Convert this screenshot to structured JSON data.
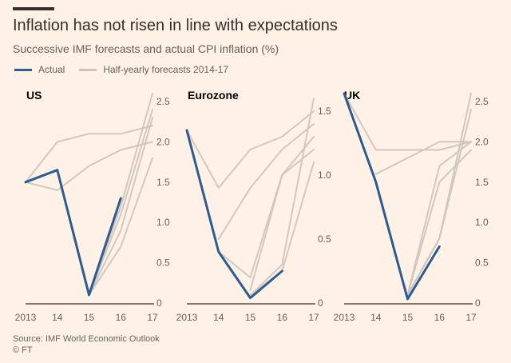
{
  "title": "Inflation has not risen in line with expectations",
  "subtitle": "Successive IMF forecasts and actual CPI inflation (%)",
  "legend": {
    "actual": "Actual",
    "forecasts": "Half-yearly forecasts 2014-17"
  },
  "source": "Source: IMF World Economic Outlook",
  "credit": "© FT",
  "colors": {
    "background": "#fff1e5",
    "actual": "#2b5c92",
    "forecast": "#cbc3bc",
    "axis": "#33302e",
    "text": "#66605c"
  },
  "chart_data": [
    {
      "type": "line",
      "title": "US",
      "x": [
        "2013",
        "14",
        "15",
        "16",
        "17"
      ],
      "ylim": [
        0,
        2.5
      ],
      "yticks": [
        "0",
        "0.5",
        "1.0",
        "1.5",
        "2.0",
        "2.5"
      ],
      "series": [
        {
          "name": "Actual",
          "values": [
            1.5,
            1.65,
            0.1,
            1.3,
            null
          ]
        },
        {
          "name": "Forecast 1",
          "values": [
            1.5,
            2.0,
            2.1,
            2.1,
            2.2
          ]
        },
        {
          "name": "Forecast 2",
          "values": [
            1.5,
            1.4,
            1.7,
            1.9,
            2.0
          ]
        },
        {
          "name": "Forecast 3",
          "values": [
            null,
            null,
            0.1,
            1.2,
            2.6
          ]
        },
        {
          "name": "Forecast 4",
          "values": [
            null,
            null,
            0.1,
            1.1,
            2.4
          ]
        },
        {
          "name": "Forecast 5",
          "values": [
            null,
            null,
            0.1,
            0.9,
            2.3
          ]
        },
        {
          "name": "Forecast 6",
          "values": [
            null,
            null,
            0.1,
            0.7,
            1.8
          ]
        }
      ]
    },
    {
      "type": "line",
      "title": "Eurozone",
      "x": [
        "2013",
        "14",
        "15",
        "16",
        "17"
      ],
      "ylim": [
        0,
        1.5
      ],
      "yticks": [
        "0",
        "0.5",
        "1.0",
        "1.5"
      ],
      "series": [
        {
          "name": "Actual",
          "values": [
            1.35,
            0.4,
            0.04,
            0.25,
            null
          ]
        },
        {
          "name": "Forecast 1",
          "values": [
            1.35,
            0.9,
            1.2,
            1.3,
            1.5
          ]
        },
        {
          "name": "Forecast 2",
          "values": [
            null,
            0.5,
            0.9,
            1.2,
            1.4
          ]
        },
        {
          "name": "Forecast 3",
          "values": [
            null,
            0.4,
            0.2,
            1.0,
            1.3
          ]
        },
        {
          "name": "Forecast 4",
          "values": [
            null,
            null,
            0.1,
            1.0,
            1.2
          ]
        },
        {
          "name": "Forecast 5",
          "values": [
            null,
            null,
            0.06,
            0.3,
            1.6
          ]
        },
        {
          "name": "Forecast 6",
          "values": [
            null,
            null,
            0.06,
            0.25,
            1.1
          ]
        }
      ]
    },
    {
      "type": "line",
      "title": "UK",
      "x": [
        "2013",
        "14",
        "15",
        "16",
        "17"
      ],
      "ylim": [
        0,
        2.5
      ],
      "yticks": [
        "0",
        "0.5",
        "1.0",
        "1.5",
        "2.0",
        "2.5"
      ],
      "series": [
        {
          "name": "Actual",
          "values": [
            2.6,
            1.5,
            0.05,
            0.7,
            null
          ]
        },
        {
          "name": "Forecast 1",
          "values": [
            2.6,
            1.9,
            1.9,
            1.9,
            2.0
          ]
        },
        {
          "name": "Forecast 2",
          "values": [
            null,
            1.6,
            1.8,
            2.0,
            2.0
          ]
        },
        {
          "name": "Forecast 3",
          "values": [
            null,
            null,
            0.1,
            1.7,
            2.0
          ]
        },
        {
          "name": "Forecast 4",
          "values": [
            null,
            null,
            0.1,
            1.5,
            1.9
          ]
        },
        {
          "name": "Forecast 5",
          "values": [
            null,
            null,
            0.1,
            0.8,
            2.6
          ]
        },
        {
          "name": "Forecast 6",
          "values": [
            null,
            null,
            0.1,
            0.8,
            2.4
          ]
        }
      ]
    }
  ]
}
